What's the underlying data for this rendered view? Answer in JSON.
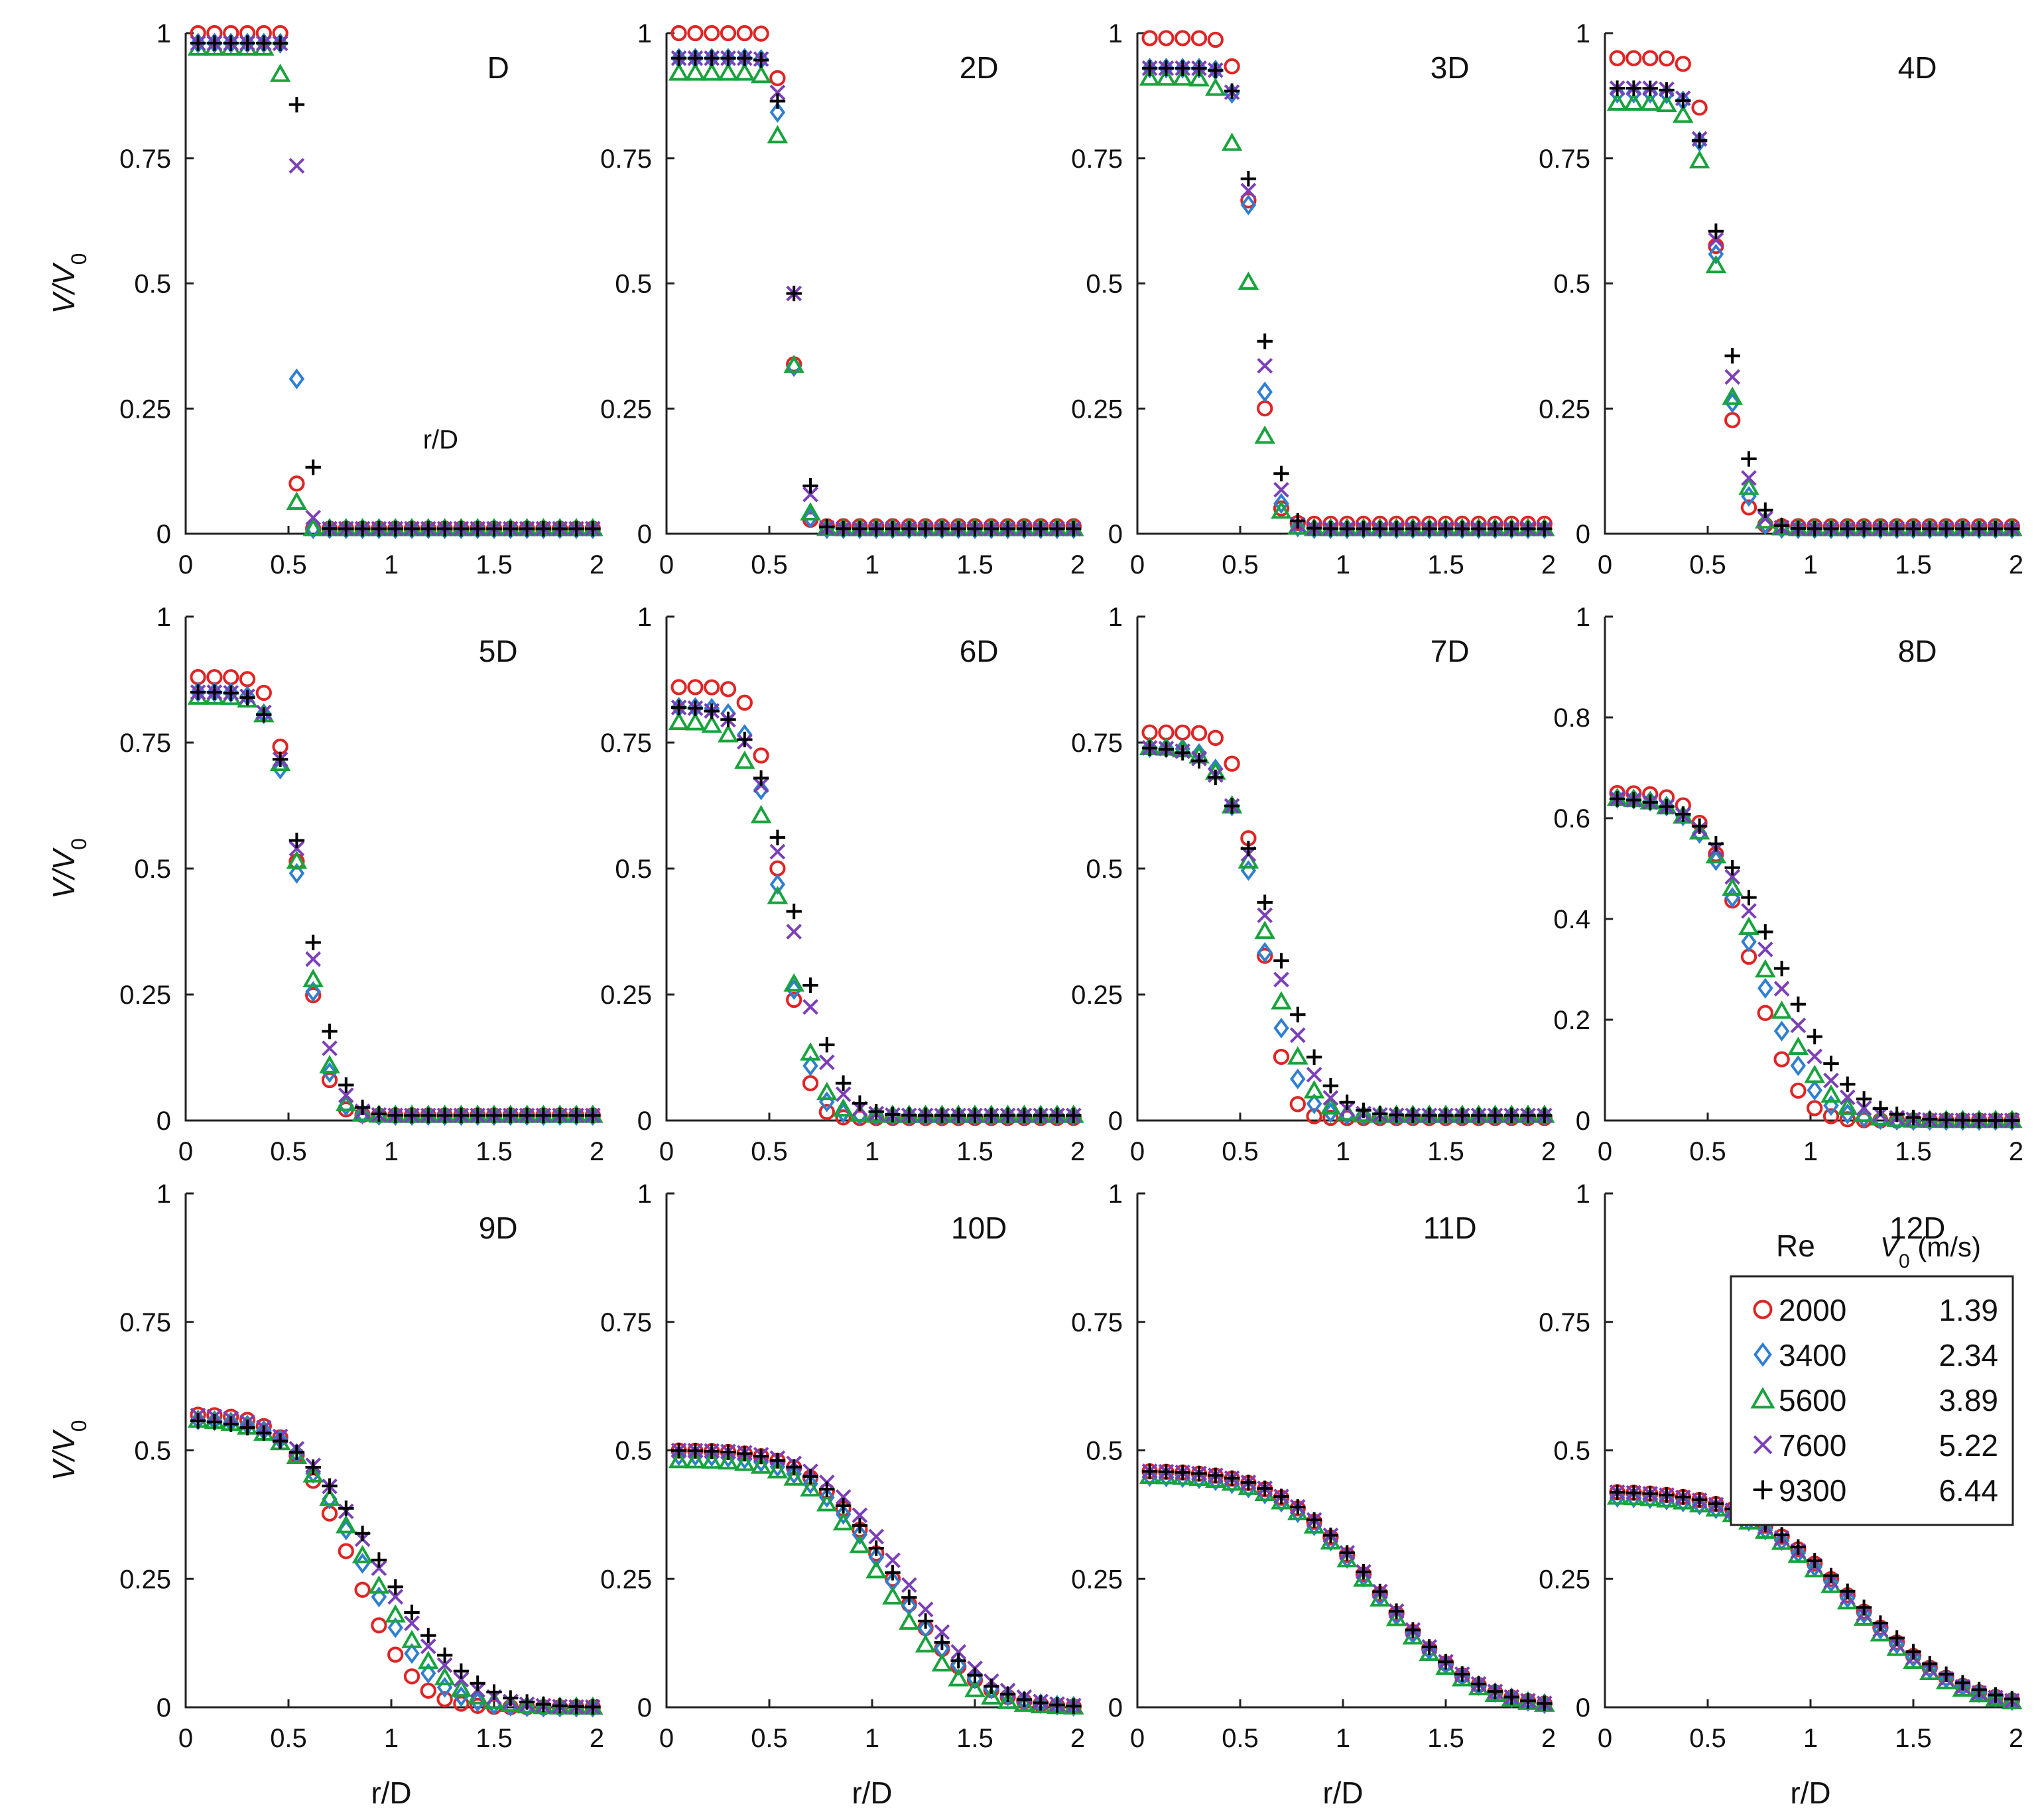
{
  "chart_data": {
    "type": "scatter",
    "title": "",
    "xlabel": "r/D",
    "ylabel": "V/V0",
    "ylabel_main": "V/V",
    "ylabel_sub": "0",
    "xlim": [
      0,
      2
    ],
    "x_ticks": [
      "0",
      "0.5",
      "1",
      "1.5",
      "2"
    ],
    "y_ticks_default": [
      "0",
      "0.25",
      "0.5",
      "0.75",
      "1"
    ],
    "y_ticks_8D": [
      "0",
      "0.2",
      "0.4",
      "0.6",
      "0.8",
      "1"
    ],
    "stray_label": "r/D",
    "series": [
      {
        "name": "2000",
        "v0": "1.39",
        "marker": "circle",
        "color": "#e02424"
      },
      {
        "name": "3400",
        "v0": "2.34",
        "marker": "diamond",
        "color": "#2f7fd1"
      },
      {
        "name": "5600",
        "v0": "3.89",
        "marker": "triangle",
        "color": "#18a33c"
      },
      {
        "name": "7600",
        "v0": "5.22",
        "marker": "x",
        "color": "#7b3fb8"
      },
      {
        "name": "9300",
        "v0": "6.44",
        "marker": "plus",
        "color": "#000000"
      }
    ],
    "legend": {
      "position": "inside panel 12D, right",
      "header_re": "Re",
      "header_v0_main": "V",
      "header_v0_sub": "0",
      "header_v0_unit": " (m/s)"
    },
    "panels": [
      {
        "label": "D",
        "ylim": [
          0,
          1
        ],
        "sigma": [
          0.015,
          0.02,
          0.025,
          0.03,
          0.035
        ],
        "r_half": [
          0.52,
          0.53,
          0.5,
          0.56,
          0.58
        ],
        "center": [
          1.0,
          0.98,
          0.97,
          0.98,
          0.98
        ],
        "tail": [
          0.01,
          0.01,
          0.01,
          0.01,
          0.01
        ]
      },
      {
        "label": "2D",
        "ylim": [
          0,
          1
        ],
        "sigma": [
          0.045,
          0.05,
          0.055,
          0.055,
          0.06
        ],
        "r_half": [
          0.6,
          0.6,
          0.6,
          0.62,
          0.62
        ],
        "center": [
          1.0,
          0.95,
          0.92,
          0.95,
          0.95
        ],
        "tail": [
          0.015,
          0.01,
          0.01,
          0.01,
          0.01
        ]
      },
      {
        "label": "3D",
        "ylim": [
          0,
          1
        ],
        "sigma": [
          0.07,
          0.075,
          0.085,
          0.08,
          0.085
        ],
        "r_half": [
          0.57,
          0.58,
          0.55,
          0.59,
          0.6
        ],
        "center": [
          0.99,
          0.93,
          0.91,
          0.93,
          0.93
        ],
        "tail": [
          0.02,
          0.01,
          0.01,
          0.01,
          0.01
        ]
      },
      {
        "label": "4D",
        "ylim": [
          0,
          1
        ],
        "sigma": [
          0.08,
          0.09,
          0.1,
          0.1,
          0.11
        ],
        "r_half": [
          0.56,
          0.57,
          0.57,
          0.58,
          0.59
        ],
        "center": [
          0.95,
          0.88,
          0.86,
          0.89,
          0.89
        ],
        "tail": [
          0.015,
          0.01,
          0.01,
          0.01,
          0.01
        ]
      },
      {
        "label": "5D",
        "ylim": [
          0,
          1
        ],
        "sigma": [
          0.1,
          0.11,
          0.11,
          0.12,
          0.13
        ],
        "r_half": [
          0.56,
          0.56,
          0.57,
          0.58,
          0.59
        ],
        "center": [
          0.88,
          0.85,
          0.84,
          0.85,
          0.85
        ],
        "tail": [
          0.01,
          0.01,
          0.01,
          0.01,
          0.01
        ]
      },
      {
        "label": "6D",
        "ylim": [
          0,
          1
        ],
        "sigma": [
          0.1,
          0.12,
          0.14,
          0.16,
          0.17
        ],
        "r_half": [
          0.56,
          0.56,
          0.56,
          0.6,
          0.62
        ],
        "center": [
          0.86,
          0.82,
          0.79,
          0.82,
          0.82
        ],
        "tail": [
          0.005,
          0.01,
          0.01,
          0.01,
          0.01
        ]
      },
      {
        "label": "7D",
        "ylim": [
          0,
          1
        ],
        "sigma": [
          0.1,
          0.14,
          0.16,
          0.18,
          0.2
        ],
        "r_half": [
          0.6,
          0.6,
          0.62,
          0.64,
          0.66
        ],
        "center": [
          0.77,
          0.74,
          0.74,
          0.74,
          0.74
        ],
        "tail": [
          0.005,
          0.01,
          0.01,
          0.01,
          0.01
        ]
      },
      {
        "label": "8D",
        "ylim": [
          0,
          1
        ],
        "sigma": [
          0.18,
          0.22,
          0.24,
          0.26,
          0.28
        ],
        "r_half": [
          0.7,
          0.73,
          0.76,
          0.8,
          0.84
        ],
        "center": [
          0.65,
          0.64,
          0.64,
          0.64,
          0.64
        ],
        "tail": [
          0.0,
          0.0,
          0.0,
          0.0,
          0.0
        ]
      },
      {
        "label": "9D",
        "ylim": [
          0,
          1
        ],
        "sigma": [
          0.24,
          0.27,
          0.3,
          0.32,
          0.34
        ],
        "r_half": [
          0.8,
          0.86,
          0.88,
          0.92,
          0.95
        ],
        "center": [
          0.57,
          0.56,
          0.56,
          0.57,
          0.56
        ],
        "tail": [
          0.0,
          0.0,
          0.0,
          0.0,
          0.0
        ]
      },
      {
        "label": "10D",
        "ylim": [
          0,
          1
        ],
        "sigma": [
          0.32,
          0.33,
          0.3,
          0.33,
          0.33
        ],
        "r_half": [
          1.1,
          1.1,
          1.06,
          1.16,
          1.12
        ],
        "center": [
          0.5,
          0.49,
          0.48,
          0.5,
          0.5
        ],
        "tail": [
          0.0,
          0.0,
          0.0,
          0.0,
          0.0
        ]
      },
      {
        "label": "11D",
        "ylim": [
          0,
          1
        ],
        "sigma": [
          0.38,
          0.38,
          0.37,
          0.38,
          0.38
        ],
        "r_half": [
          1.16,
          1.16,
          1.15,
          1.17,
          1.17
        ],
        "center": [
          0.46,
          0.45,
          0.45,
          0.46,
          0.46
        ],
        "tail": [
          0.0,
          0.0,
          0.0,
          0.0,
          0.0
        ]
      },
      {
        "label": "12D",
        "ylim": [
          0,
          1
        ],
        "sigma": [
          0.42,
          0.42,
          0.41,
          0.42,
          0.43
        ],
        "r_half": [
          1.2,
          1.2,
          1.18,
          1.19,
          1.22
        ],
        "center": [
          0.42,
          0.41,
          0.41,
          0.42,
          0.42
        ],
        "tail": [
          0.0,
          0.0,
          0.0,
          0.0,
          0.0
        ]
      }
    ]
  }
}
